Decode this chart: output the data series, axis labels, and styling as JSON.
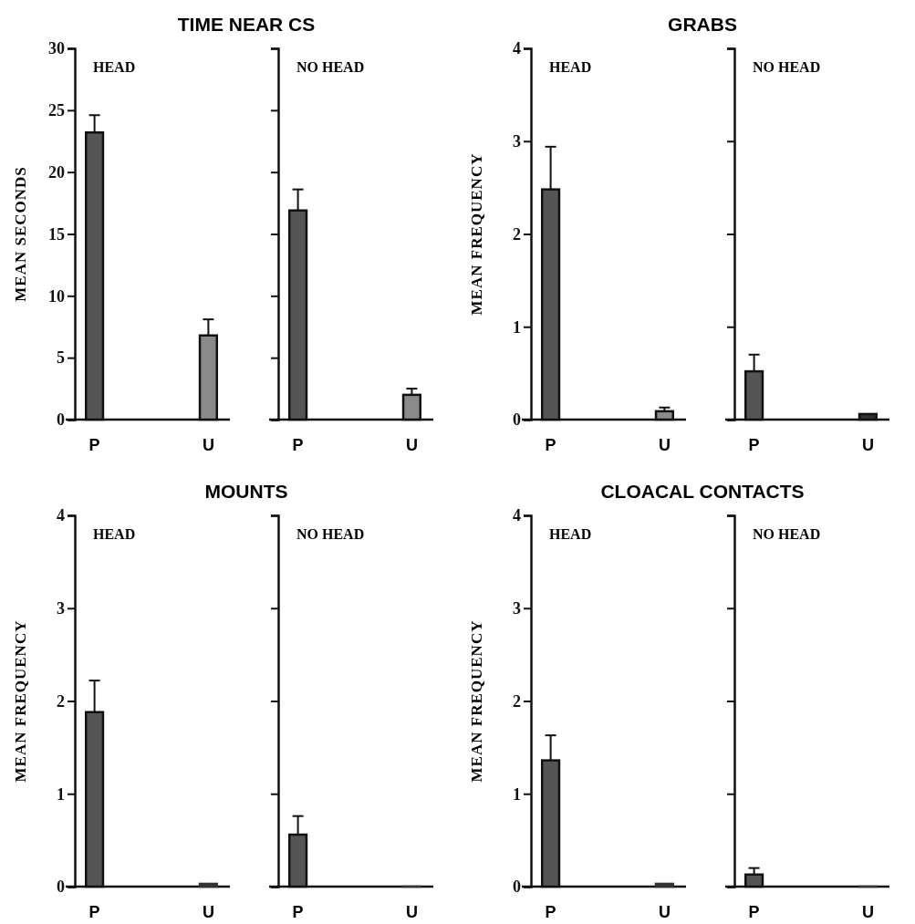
{
  "chart_data": [
    {
      "type": "bar",
      "title": "TIME NEAR CS",
      "ylabel": "MEAN SECONDS",
      "annotations": [
        "HEAD"
      ],
      "categories": [
        "P",
        "U"
      ],
      "values": [
        23.2,
        6.8
      ],
      "errors": [
        1.4,
        1.3
      ],
      "colors": [
        "#555555",
        "#8a8a8a"
      ],
      "ylim": [
        0,
        30
      ],
      "yticks": [
        0,
        5,
        10,
        15,
        20,
        25,
        30
      ]
    },
    {
      "type": "bar",
      "annotations": [
        "NO HEAD"
      ],
      "categories": [
        "P",
        "U"
      ],
      "values": [
        16.9,
        2.0
      ],
      "errors": [
        1.7,
        0.5
      ],
      "colors": [
        "#555555",
        "#8a8a8a"
      ],
      "ylim": [
        0,
        30
      ],
      "yticks": [
        {
          "value": 0,
          "label": null
        },
        {
          "value": 5,
          "label": null
        },
        {
          "value": 10,
          "label": null
        },
        {
          "value": 15,
          "label": null
        },
        {
          "value": 20,
          "label": null
        },
        {
          "value": 25,
          "label": null
        },
        {
          "value": 30,
          "label": null
        }
      ],
      "tick_labels": "x"
    },
    {
      "type": "bar",
      "title": "GRABS",
      "ylabel": "MEAN FREQUENCY",
      "annotations": [
        "HEAD"
      ],
      "categories": [
        "P",
        "U"
      ],
      "values": [
        2.48,
        0.09
      ],
      "errors": [
        0.46,
        0.04
      ],
      "colors": [
        "#555555",
        "#8a8a8a"
      ],
      "ylim": [
        0,
        4
      ],
      "yticks": [
        0,
        1,
        2,
        3,
        4
      ]
    },
    {
      "type": "bar",
      "annotations": [
        "NO HEAD"
      ],
      "categories": [
        "P",
        "U"
      ],
      "values": [
        0.52,
        0.06
      ],
      "errors": [
        0.18,
        null
      ],
      "colors": [
        "#555555",
        "#333333"
      ],
      "ylim": [
        0,
        4
      ],
      "yticks": [
        {
          "value": 0,
          "label": null
        },
        {
          "value": 1,
          "label": null
        },
        {
          "value": 2,
          "label": null
        },
        {
          "value": 3,
          "label": null
        },
        {
          "value": 4,
          "label": null
        }
      ],
      "tick_labels": "x"
    },
    {
      "type": "bar",
      "title": "MOUNTS",
      "ylabel": "MEAN FREQUENCY",
      "annotations": [
        "HEAD"
      ],
      "categories": [
        "P",
        "U"
      ],
      "values": [
        1.88,
        0.03
      ],
      "errors": [
        0.34,
        null
      ],
      "colors": [
        "#555555",
        "#333333"
      ],
      "ylim": [
        0,
        4
      ],
      "yticks": [
        0,
        1,
        2,
        3,
        4
      ]
    },
    {
      "type": "bar",
      "annotations": [
        "NO HEAD"
      ],
      "categories": [
        "P",
        "U"
      ],
      "values": [
        0.56,
        0
      ],
      "errors": [
        0.2,
        null
      ],
      "colors": [
        "#555555",
        "#333333"
      ],
      "ylim": [
        0,
        4
      ],
      "yticks": [
        {
          "value": 0,
          "label": null
        },
        {
          "value": 1,
          "label": null
        },
        {
          "value": 2,
          "label": null
        },
        {
          "value": 3,
          "label": null
        },
        {
          "value": 4,
          "label": null
        }
      ],
      "tick_labels": "x"
    },
    {
      "type": "bar",
      "title": "CLOACAL CONTACTS",
      "ylabel": "MEAN FREQUENCY",
      "annotations": [
        "HEAD"
      ],
      "categories": [
        "P",
        "U"
      ],
      "values": [
        1.36,
        0.03
      ],
      "errors": [
        0.27,
        null
      ],
      "colors": [
        "#555555",
        "#333333"
      ],
      "ylim": [
        0,
        4
      ],
      "yticks": [
        0,
        1,
        2,
        3,
        4
      ]
    },
    {
      "type": "bar",
      "annotations": [
        "NO HEAD"
      ],
      "categories": [
        "P",
        "U"
      ],
      "values": [
        0.13,
        0
      ],
      "errors": [
        0.07,
        null
      ],
      "colors": [
        "#555555",
        "#333333"
      ],
      "ylim": [
        0,
        4
      ],
      "yticks": [
        {
          "value": 0,
          "label": null
        },
        {
          "value": 1,
          "label": null
        },
        {
          "value": 2,
          "label": null
        },
        {
          "value": 3,
          "label": null
        },
        {
          "value": 4,
          "label": null
        }
      ],
      "tick_labels": "x"
    }
  ]
}
